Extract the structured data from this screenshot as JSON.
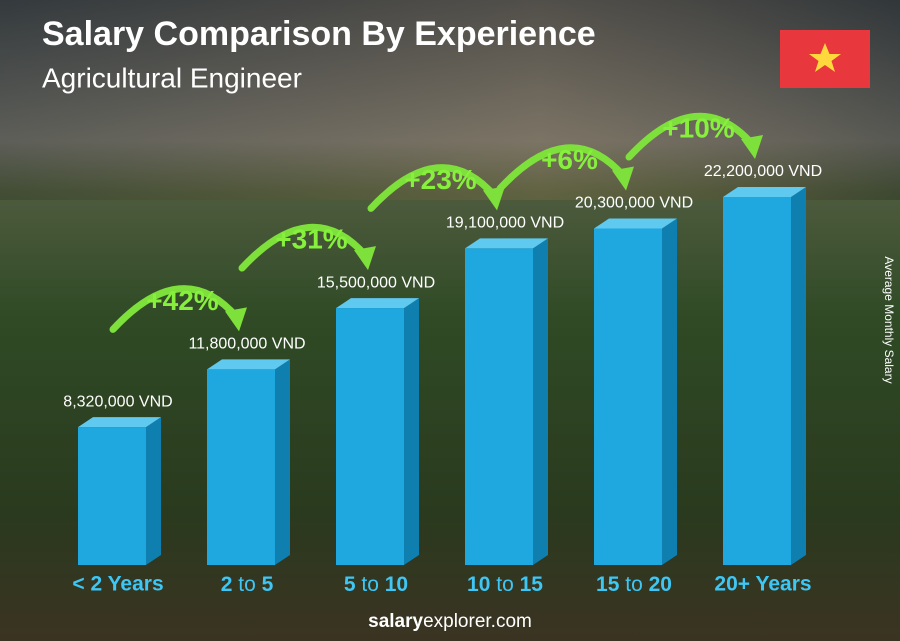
{
  "chart_data": {
    "type": "bar",
    "title": "Salary Comparison By Experience",
    "subtitle": "Agricultural Engineer",
    "y_label": "Average Monthly Salary",
    "categories": [
      "< 2 Years",
      "2 to 5",
      "5 to 10",
      "10 to 15",
      "15 to 20",
      "20+ Years"
    ],
    "values": [
      8320000,
      11800000,
      15500000,
      19100000,
      20300000,
      22200000
    ],
    "value_labels": [
      "8,320,000 VND",
      "11,800,000 VND",
      "15,500,000 VND",
      "19,100,000 VND",
      "20,300,000 VND",
      "22,200,000 VND"
    ],
    "annotations": [
      "+42%",
      "+31%",
      "+23%",
      "+6%",
      "+10%"
    ],
    "color": "#1fa8e0",
    "footer": {
      "bold": "salary",
      "rest": "explorer.com"
    }
  }
}
